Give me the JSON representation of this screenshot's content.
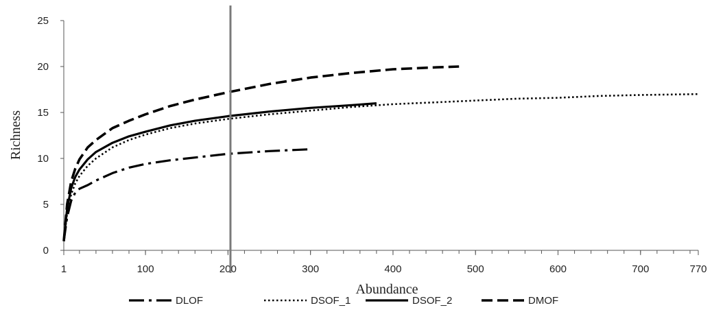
{
  "chart_data": {
    "type": "line",
    "xlabel": "Abundance",
    "ylabel": "Richness",
    "xlim": [
      1,
      770
    ],
    "ylim": [
      0,
      25
    ],
    "x_ticks": [
      1,
      100,
      200,
      300,
      400,
      500,
      600,
      700,
      770
    ],
    "y_ticks": [
      0,
      5,
      10,
      15,
      20,
      25
    ],
    "grid": false,
    "legend_position": "bottom",
    "reference_line_x": 203,
    "series": [
      {
        "name": "DLOF",
        "style": "dash-dot",
        "x": [
          1,
          5,
          10,
          15,
          20,
          30,
          40,
          60,
          80,
          100,
          130,
          160,
          200,
          250,
          300
        ],
        "y": [
          1,
          3.6,
          5.4,
          6.3,
          6.7,
          7.1,
          7.6,
          8.4,
          9.0,
          9.4,
          9.8,
          10.1,
          10.5,
          10.8,
          11.0
        ]
      },
      {
        "name": "DSOF_1",
        "style": "dotted",
        "x": [
          1,
          5,
          10,
          15,
          20,
          30,
          40,
          60,
          80,
          100,
          130,
          160,
          200,
          250,
          300,
          350,
          400,
          450,
          500,
          550,
          600,
          650,
          700,
          770
        ],
        "y": [
          1,
          4.0,
          6.1,
          7.3,
          8.1,
          9.2,
          10.0,
          11.2,
          12.0,
          12.6,
          13.3,
          13.8,
          14.3,
          14.8,
          15.2,
          15.6,
          15.9,
          16.1,
          16.3,
          16.5,
          16.6,
          16.8,
          16.9,
          17.0
        ]
      },
      {
        "name": "DSOF_2",
        "style": "solid",
        "x": [
          1,
          5,
          10,
          15,
          20,
          30,
          40,
          60,
          80,
          100,
          130,
          160,
          200,
          250,
          300,
          350,
          380
        ],
        "y": [
          1,
          4.5,
          6.8,
          8.0,
          8.8,
          9.9,
          10.7,
          11.7,
          12.4,
          12.9,
          13.6,
          14.1,
          14.6,
          15.1,
          15.5,
          15.8,
          16.0
        ]
      },
      {
        "name": "DMOF",
        "style": "dashed",
        "x": [
          1,
          5,
          10,
          15,
          20,
          30,
          40,
          60,
          80,
          100,
          130,
          160,
          200,
          250,
          300,
          350,
          400,
          450,
          480
        ],
        "y": [
          1,
          5.0,
          7.5,
          8.9,
          9.9,
          11.2,
          12.0,
          13.3,
          14.1,
          14.8,
          15.7,
          16.4,
          17.2,
          18.1,
          18.8,
          19.3,
          19.7,
          19.9,
          20.0
        ]
      }
    ]
  }
}
